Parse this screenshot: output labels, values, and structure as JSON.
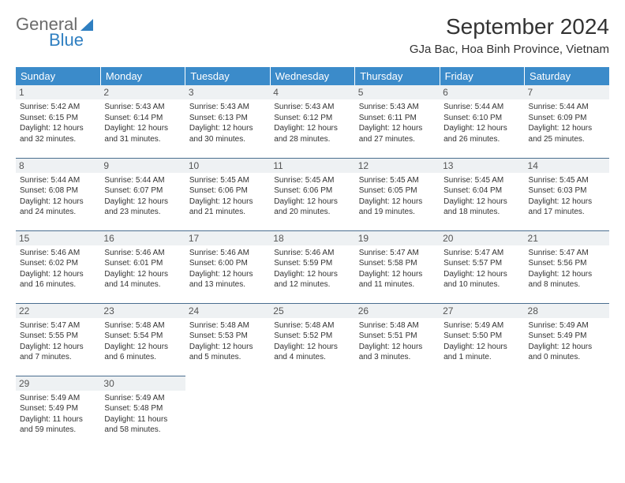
{
  "brand": {
    "part1": "General",
    "part2": "Blue",
    "logo_color": "#2f7fc1"
  },
  "title": "September 2024",
  "location": "GJa Bac, Hoa Binh Province, Vietnam",
  "colors": {
    "header_bg": "#3b8bca",
    "header_text": "#ffffff",
    "row_border": "#4a6e8f",
    "daynum_bg": "#eef1f3",
    "text": "#333333"
  },
  "day_headers": [
    "Sunday",
    "Monday",
    "Tuesday",
    "Wednesday",
    "Thursday",
    "Friday",
    "Saturday"
  ],
  "weeks": [
    [
      {
        "n": "1",
        "sr": "Sunrise: 5:42 AM",
        "ss": "Sunset: 6:15 PM",
        "dl": "Daylight: 12 hours and 32 minutes."
      },
      {
        "n": "2",
        "sr": "Sunrise: 5:43 AM",
        "ss": "Sunset: 6:14 PM",
        "dl": "Daylight: 12 hours and 31 minutes."
      },
      {
        "n": "3",
        "sr": "Sunrise: 5:43 AM",
        "ss": "Sunset: 6:13 PM",
        "dl": "Daylight: 12 hours and 30 minutes."
      },
      {
        "n": "4",
        "sr": "Sunrise: 5:43 AM",
        "ss": "Sunset: 6:12 PM",
        "dl": "Daylight: 12 hours and 28 minutes."
      },
      {
        "n": "5",
        "sr": "Sunrise: 5:43 AM",
        "ss": "Sunset: 6:11 PM",
        "dl": "Daylight: 12 hours and 27 minutes."
      },
      {
        "n": "6",
        "sr": "Sunrise: 5:44 AM",
        "ss": "Sunset: 6:10 PM",
        "dl": "Daylight: 12 hours and 26 minutes."
      },
      {
        "n": "7",
        "sr": "Sunrise: 5:44 AM",
        "ss": "Sunset: 6:09 PM",
        "dl": "Daylight: 12 hours and 25 minutes."
      }
    ],
    [
      {
        "n": "8",
        "sr": "Sunrise: 5:44 AM",
        "ss": "Sunset: 6:08 PM",
        "dl": "Daylight: 12 hours and 24 minutes."
      },
      {
        "n": "9",
        "sr": "Sunrise: 5:44 AM",
        "ss": "Sunset: 6:07 PM",
        "dl": "Daylight: 12 hours and 23 minutes."
      },
      {
        "n": "10",
        "sr": "Sunrise: 5:45 AM",
        "ss": "Sunset: 6:06 PM",
        "dl": "Daylight: 12 hours and 21 minutes."
      },
      {
        "n": "11",
        "sr": "Sunrise: 5:45 AM",
        "ss": "Sunset: 6:06 PM",
        "dl": "Daylight: 12 hours and 20 minutes."
      },
      {
        "n": "12",
        "sr": "Sunrise: 5:45 AM",
        "ss": "Sunset: 6:05 PM",
        "dl": "Daylight: 12 hours and 19 minutes."
      },
      {
        "n": "13",
        "sr": "Sunrise: 5:45 AM",
        "ss": "Sunset: 6:04 PM",
        "dl": "Daylight: 12 hours and 18 minutes."
      },
      {
        "n": "14",
        "sr": "Sunrise: 5:45 AM",
        "ss": "Sunset: 6:03 PM",
        "dl": "Daylight: 12 hours and 17 minutes."
      }
    ],
    [
      {
        "n": "15",
        "sr": "Sunrise: 5:46 AM",
        "ss": "Sunset: 6:02 PM",
        "dl": "Daylight: 12 hours and 16 minutes."
      },
      {
        "n": "16",
        "sr": "Sunrise: 5:46 AM",
        "ss": "Sunset: 6:01 PM",
        "dl": "Daylight: 12 hours and 14 minutes."
      },
      {
        "n": "17",
        "sr": "Sunrise: 5:46 AM",
        "ss": "Sunset: 6:00 PM",
        "dl": "Daylight: 12 hours and 13 minutes."
      },
      {
        "n": "18",
        "sr": "Sunrise: 5:46 AM",
        "ss": "Sunset: 5:59 PM",
        "dl": "Daylight: 12 hours and 12 minutes."
      },
      {
        "n": "19",
        "sr": "Sunrise: 5:47 AM",
        "ss": "Sunset: 5:58 PM",
        "dl": "Daylight: 12 hours and 11 minutes."
      },
      {
        "n": "20",
        "sr": "Sunrise: 5:47 AM",
        "ss": "Sunset: 5:57 PM",
        "dl": "Daylight: 12 hours and 10 minutes."
      },
      {
        "n": "21",
        "sr": "Sunrise: 5:47 AM",
        "ss": "Sunset: 5:56 PM",
        "dl": "Daylight: 12 hours and 8 minutes."
      }
    ],
    [
      {
        "n": "22",
        "sr": "Sunrise: 5:47 AM",
        "ss": "Sunset: 5:55 PM",
        "dl": "Daylight: 12 hours and 7 minutes."
      },
      {
        "n": "23",
        "sr": "Sunrise: 5:48 AM",
        "ss": "Sunset: 5:54 PM",
        "dl": "Daylight: 12 hours and 6 minutes."
      },
      {
        "n": "24",
        "sr": "Sunrise: 5:48 AM",
        "ss": "Sunset: 5:53 PM",
        "dl": "Daylight: 12 hours and 5 minutes."
      },
      {
        "n": "25",
        "sr": "Sunrise: 5:48 AM",
        "ss": "Sunset: 5:52 PM",
        "dl": "Daylight: 12 hours and 4 minutes."
      },
      {
        "n": "26",
        "sr": "Sunrise: 5:48 AM",
        "ss": "Sunset: 5:51 PM",
        "dl": "Daylight: 12 hours and 3 minutes."
      },
      {
        "n": "27",
        "sr": "Sunrise: 5:49 AM",
        "ss": "Sunset: 5:50 PM",
        "dl": "Daylight: 12 hours and 1 minute."
      },
      {
        "n": "28",
        "sr": "Sunrise: 5:49 AM",
        "ss": "Sunset: 5:49 PM",
        "dl": "Daylight: 12 hours and 0 minutes."
      }
    ],
    [
      {
        "n": "29",
        "sr": "Sunrise: 5:49 AM",
        "ss": "Sunset: 5:49 PM",
        "dl": "Daylight: 11 hours and 59 minutes."
      },
      {
        "n": "30",
        "sr": "Sunrise: 5:49 AM",
        "ss": "Sunset: 5:48 PM",
        "dl": "Daylight: 11 hours and 58 minutes."
      },
      null,
      null,
      null,
      null,
      null
    ]
  ]
}
